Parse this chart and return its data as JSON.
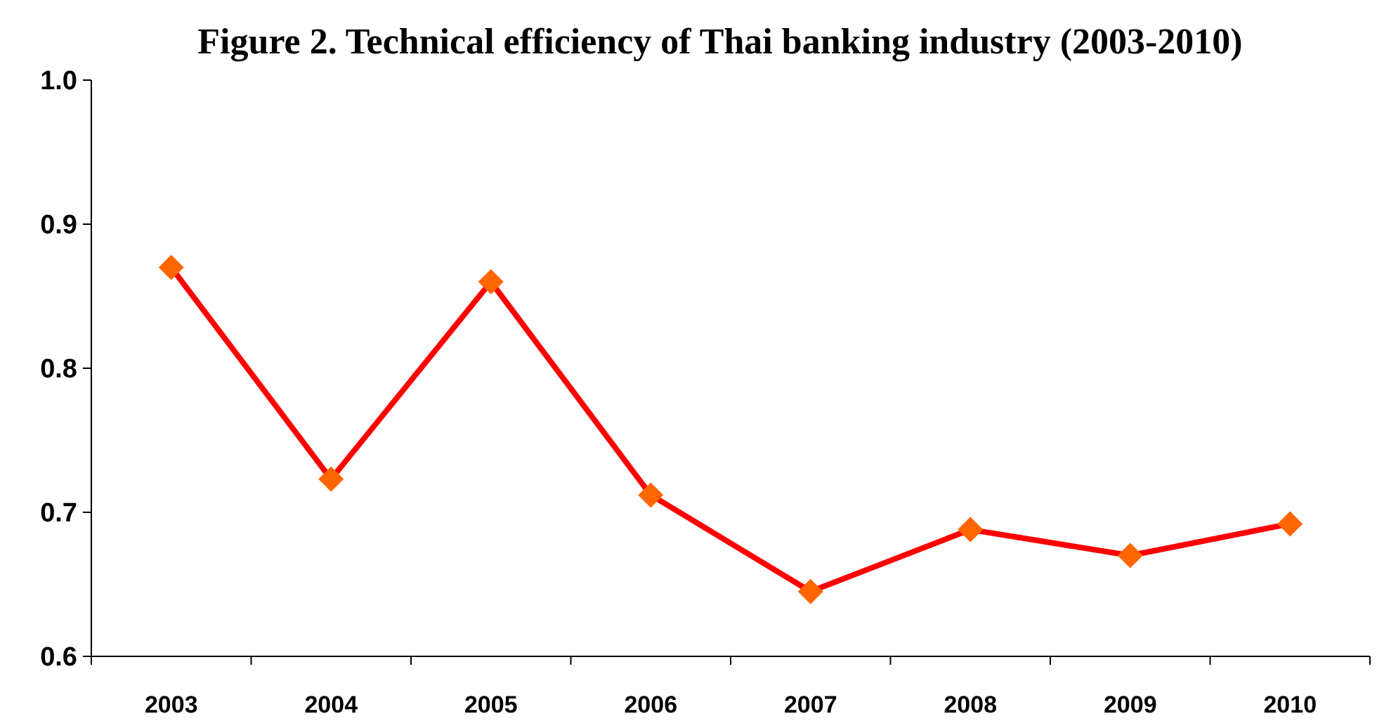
{
  "chart_data": {
    "type": "line",
    "title": "Figure 2. Technical efficiency of Thai banking industry (2003-2010)",
    "categories": [
      "2003",
      "2004",
      "2005",
      "2006",
      "2007",
      "2008",
      "2009",
      "2010"
    ],
    "series": [
      {
        "color": "#ff0000",
        "colors": [
          "#ff6600",
          "#ff6600",
          "#ff6600",
          "#ff6600",
          "#ff6600",
          "#ff6600",
          "#ff6600",
          "#ff6600"
        ],
        "values": [
          0.87,
          0.723,
          0.86,
          0.712,
          0.645,
          0.688,
          0.67,
          0.692
        ]
      }
    ],
    "marker": "diamond",
    "line_style": "solid",
    "ylim": [
      0.6,
      1.0
    ],
    "yticks": [
      {
        "value": 0.6,
        "label": "0.6"
      },
      {
        "value": 0.7,
        "label": "0.7"
      },
      {
        "value": 0.8,
        "label": "0.8"
      },
      {
        "value": 0.9,
        "label": "0.9"
      },
      {
        "value": 1.0,
        "label": "1.0"
      }
    ]
  }
}
